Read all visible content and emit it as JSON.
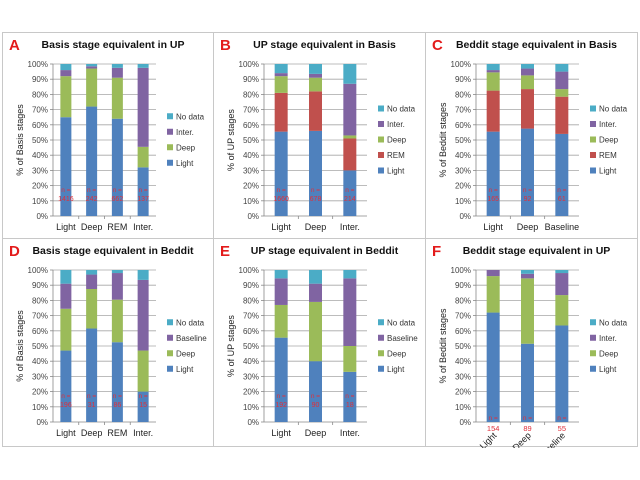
{
  "colors": {
    "Light": "#4F81BD",
    "REM": "#C0504D",
    "Deep": "#9BBB59",
    "Inter.": "#8064A2",
    "Baseline": "#8064A2",
    "No data": "#4BACC6",
    "n_label": "#E0303A",
    "panel_letter": "#E31B1B"
  },
  "chart_data": [
    {
      "id": "A",
      "type": "bar",
      "stacked": true,
      "title": "Basis stage equivalent in UP",
      "ylabel": "% of Basis stages",
      "xlabel": "",
      "ylim": [
        0,
        100
      ],
      "yticks": [
        "0%",
        "10%",
        "20%",
        "30%",
        "40%",
        "50%",
        "60%",
        "70%",
        "80%",
        "90%",
        "100%"
      ],
      "grid": true,
      "legend_position": "right",
      "categories": [
        "Light",
        "Deep",
        "REM",
        "Inter."
      ],
      "n": [
        "1416",
        "242",
        "662",
        "137"
      ],
      "series": [
        {
          "name": "Light",
          "values": [
            65,
            72,
            64,
            32
          ]
        },
        {
          "name": "Deep",
          "values": [
            27,
            25,
            27,
            13.5
          ]
        },
        {
          "name": "Inter.",
          "values": [
            4,
            1.5,
            6.5,
            52
          ]
        },
        {
          "name": "No data",
          "values": [
            4,
            1.5,
            2.5,
            2.5
          ]
        }
      ]
    },
    {
      "id": "B",
      "type": "bar",
      "stacked": true,
      "title": "UP stage equivalent in Basis",
      "ylabel": "% of UP stages",
      "xlabel": "",
      "ylim": [
        0,
        100
      ],
      "yticks": [
        "0%",
        "10%",
        "20%",
        "30%",
        "40%",
        "50%",
        "60%",
        "70%",
        "80%",
        "90%",
        "100%"
      ],
      "grid": true,
      "legend_position": "right",
      "categories": [
        "Light",
        "Deep",
        "Inter."
      ],
      "n": [
        "1660",
        "678",
        "214"
      ],
      "series": [
        {
          "name": "Light",
          "values": [
            55.5,
            56,
            30
          ]
        },
        {
          "name": "REM",
          "values": [
            25.5,
            26,
            21
          ]
        },
        {
          "name": "Deep",
          "values": [
            11,
            9,
            2
          ]
        },
        {
          "name": "Inter.",
          "values": [
            2,
            2.5,
            34
          ]
        },
        {
          "name": "No data",
          "values": [
            6,
            6.5,
            13
          ]
        }
      ]
    },
    {
      "id": "C",
      "type": "bar",
      "stacked": true,
      "title": "Beddit stage equivalent in Basis",
      "ylabel": "% of Beddit stages",
      "xlabel": "",
      "ylim": [
        0,
        100
      ],
      "yticks": [
        "0%",
        "10%",
        "20%",
        "30%",
        "40%",
        "50%",
        "60%",
        "70%",
        "80%",
        "90%",
        "100%"
      ],
      "grid": true,
      "legend_position": "right",
      "categories": [
        "Light",
        "Deep",
        "Baseline"
      ],
      "n": [
        "165",
        "92",
        "61"
      ],
      "series": [
        {
          "name": "Light",
          "values": [
            55.5,
            57.5,
            54
          ]
        },
        {
          "name": "REM",
          "values": [
            27,
            26,
            24.5
          ]
        },
        {
          "name": "Deep",
          "values": [
            12,
            9,
            5
          ]
        },
        {
          "name": "Inter.",
          "values": [
            1.5,
            4.5,
            11.5
          ]
        },
        {
          "name": "No data",
          "values": [
            4,
            3,
            5
          ]
        }
      ]
    },
    {
      "id": "D",
      "type": "bar",
      "stacked": true,
      "title": "Basis stage equivalent in Beddit",
      "ylabel": "% of Basis stages",
      "xlabel": "",
      "ylim": [
        0,
        100
      ],
      "yticks": [
        "0%",
        "10%",
        "20%",
        "30%",
        "40%",
        "50%",
        "60%",
        "70%",
        "80%",
        "90%",
        "100%"
      ],
      "grid": true,
      "legend_position": "right",
      "categories": [
        "Light",
        "Deep",
        "REM",
        "Inter."
      ],
      "n": [
        "196",
        "31",
        "86",
        "15"
      ],
      "series": [
        {
          "name": "Light",
          "values": [
            47,
            61.5,
            52.5,
            20
          ]
        },
        {
          "name": "Deep",
          "values": [
            27.5,
            26,
            28,
            27
          ]
        },
        {
          "name": "Baseline",
          "values": [
            16.5,
            9.5,
            17.5,
            46.5
          ]
        },
        {
          "name": "No data",
          "values": [
            9,
            3,
            2,
            6.5
          ]
        }
      ]
    },
    {
      "id": "E",
      "type": "bar",
      "stacked": true,
      "title": "UP stage equivalent in Beddit",
      "ylabel": "% of UP stages",
      "xlabel": "",
      "ylim": [
        0,
        100
      ],
      "yticks": [
        "0%",
        "10%",
        "20%",
        "30%",
        "40%",
        "50%",
        "60%",
        "70%",
        "80%",
        "90%",
        "100%"
      ],
      "grid": true,
      "legend_position": "right",
      "categories": [
        "Light",
        "Deep",
        "Inter."
      ],
      "n": [
        "192",
        "90",
        "18"
      ],
      "series": [
        {
          "name": "Light",
          "values": [
            55.5,
            40,
            33
          ]
        },
        {
          "name": "Deep",
          "values": [
            21.5,
            39,
            17
          ]
        },
        {
          "name": "Baseline",
          "values": [
            17.5,
            12,
            44.5
          ]
        },
        {
          "name": "No data",
          "values": [
            5.5,
            9,
            5.5
          ]
        }
      ]
    },
    {
      "id": "F",
      "type": "bar",
      "stacked": true,
      "title": "Beddit stage equivalent in UP",
      "ylabel": "% of Beddit stages",
      "xlabel": "",
      "ylim": [
        0,
        100
      ],
      "yticks": [
        "0%",
        "10%",
        "20%",
        "30%",
        "40%",
        "50%",
        "60%",
        "70%",
        "80%",
        "90%",
        "100%"
      ],
      "grid": true,
      "legend_position": "right",
      "rotated_xlabels": true,
      "categories": [
        "Light",
        "Deep",
        "Baseline"
      ],
      "n": [
        "154",
        "89",
        "55"
      ],
      "series": [
        {
          "name": "Light",
          "values": [
            72,
            51.5,
            63.5
          ]
        },
        {
          "name": "Deep",
          "values": [
            24,
            43,
            20
          ]
        },
        {
          "name": "Inter.",
          "values": [
            4,
            3,
            14.5
          ]
        },
        {
          "name": "No data",
          "values": [
            0,
            2.5,
            2
          ]
        }
      ]
    }
  ],
  "n_prefix": "n ="
}
